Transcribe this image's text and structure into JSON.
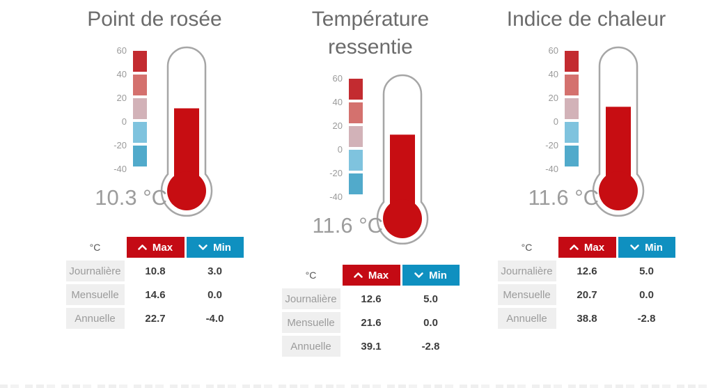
{
  "colors": {
    "title_gray": "#6b6b6b",
    "value_gray": "#9c9c9c",
    "max_red": "#c40a14",
    "min_blue": "#0f90c0",
    "thermo_fill_red": "#c70d12",
    "thermo_outline_gray": "#a6a6a6",
    "row_label_bg": "#efefef",
    "row_label_text": "#9b9b9b"
  },
  "scale": {
    "ticks": [
      "60",
      "40",
      "20",
      "0",
      "-20",
      "-40"
    ],
    "band_colors": [
      "#c32b30",
      "#d4716e",
      "#d2b2b8",
      "#7fc3de",
      "#51aacb"
    ]
  },
  "table_header": {
    "unit": "°C",
    "max": "Max",
    "min": "Min"
  },
  "panels": [
    {
      "title": "Point de rosée",
      "value": "10.3",
      "unit": "°C",
      "rows": [
        {
          "label": "Journalière",
          "max": "10.8",
          "min": "3.0"
        },
        {
          "label": "Mensuelle",
          "max": "14.6",
          "min": "0.0"
        },
        {
          "label": "Annuelle",
          "max": "22.7",
          "min": "-4.0"
        }
      ]
    },
    {
      "title": "Température ressentie",
      "value": "11.6",
      "unit": "°C",
      "rows": [
        {
          "label": "Journalière",
          "max": "12.6",
          "min": "5.0"
        },
        {
          "label": "Mensuelle",
          "max": "21.6",
          "min": "0.0"
        },
        {
          "label": "Annuelle",
          "max": "39.1",
          "min": "-2.8"
        }
      ]
    },
    {
      "title": "Indice de chaleur",
      "value": "11.6",
      "unit": "°C",
      "rows": [
        {
          "label": "Journalière",
          "max": "12.6",
          "min": "5.0"
        },
        {
          "label": "Mensuelle",
          "max": "20.7",
          "min": "0.0"
        },
        {
          "label": "Annuelle",
          "max": "38.8",
          "min": "-2.8"
        }
      ]
    }
  ],
  "chart_data": [
    {
      "type": "gauge",
      "title": "Point de rosée",
      "unit": "°C",
      "value": 10.3,
      "axis_range": [
        -40,
        60
      ],
      "ticks": [
        60,
        40,
        20,
        0,
        -20,
        -40
      ],
      "stats": {
        "columns": [
          "Max",
          "Min"
        ],
        "rows": [
          [
            "Journalière",
            10.8,
            3.0
          ],
          [
            "Mensuelle",
            14.6,
            0.0
          ],
          [
            "Annuelle",
            22.7,
            -4.0
          ]
        ]
      }
    },
    {
      "type": "gauge",
      "title": "Température ressentie",
      "unit": "°C",
      "value": 11.6,
      "axis_range": [
        -40,
        60
      ],
      "ticks": [
        60,
        40,
        20,
        0,
        -20,
        -40
      ],
      "stats": {
        "columns": [
          "Max",
          "Min"
        ],
        "rows": [
          [
            "Journalière",
            12.6,
            5.0
          ],
          [
            "Mensuelle",
            21.6,
            0.0
          ],
          [
            "Annuelle",
            39.1,
            -2.8
          ]
        ]
      }
    },
    {
      "type": "gauge",
      "title": "Indice de chaleur",
      "unit": "°C",
      "value": 11.6,
      "axis_range": [
        -40,
        60
      ],
      "ticks": [
        60,
        40,
        20,
        0,
        -20,
        -40
      ],
      "stats": {
        "columns": [
          "Max",
          "Min"
        ],
        "rows": [
          [
            "Journalière",
            12.6,
            5.0
          ],
          [
            "Mensuelle",
            20.7,
            0.0
          ],
          [
            "Annuelle",
            38.8,
            -2.8
          ]
        ]
      }
    }
  ]
}
